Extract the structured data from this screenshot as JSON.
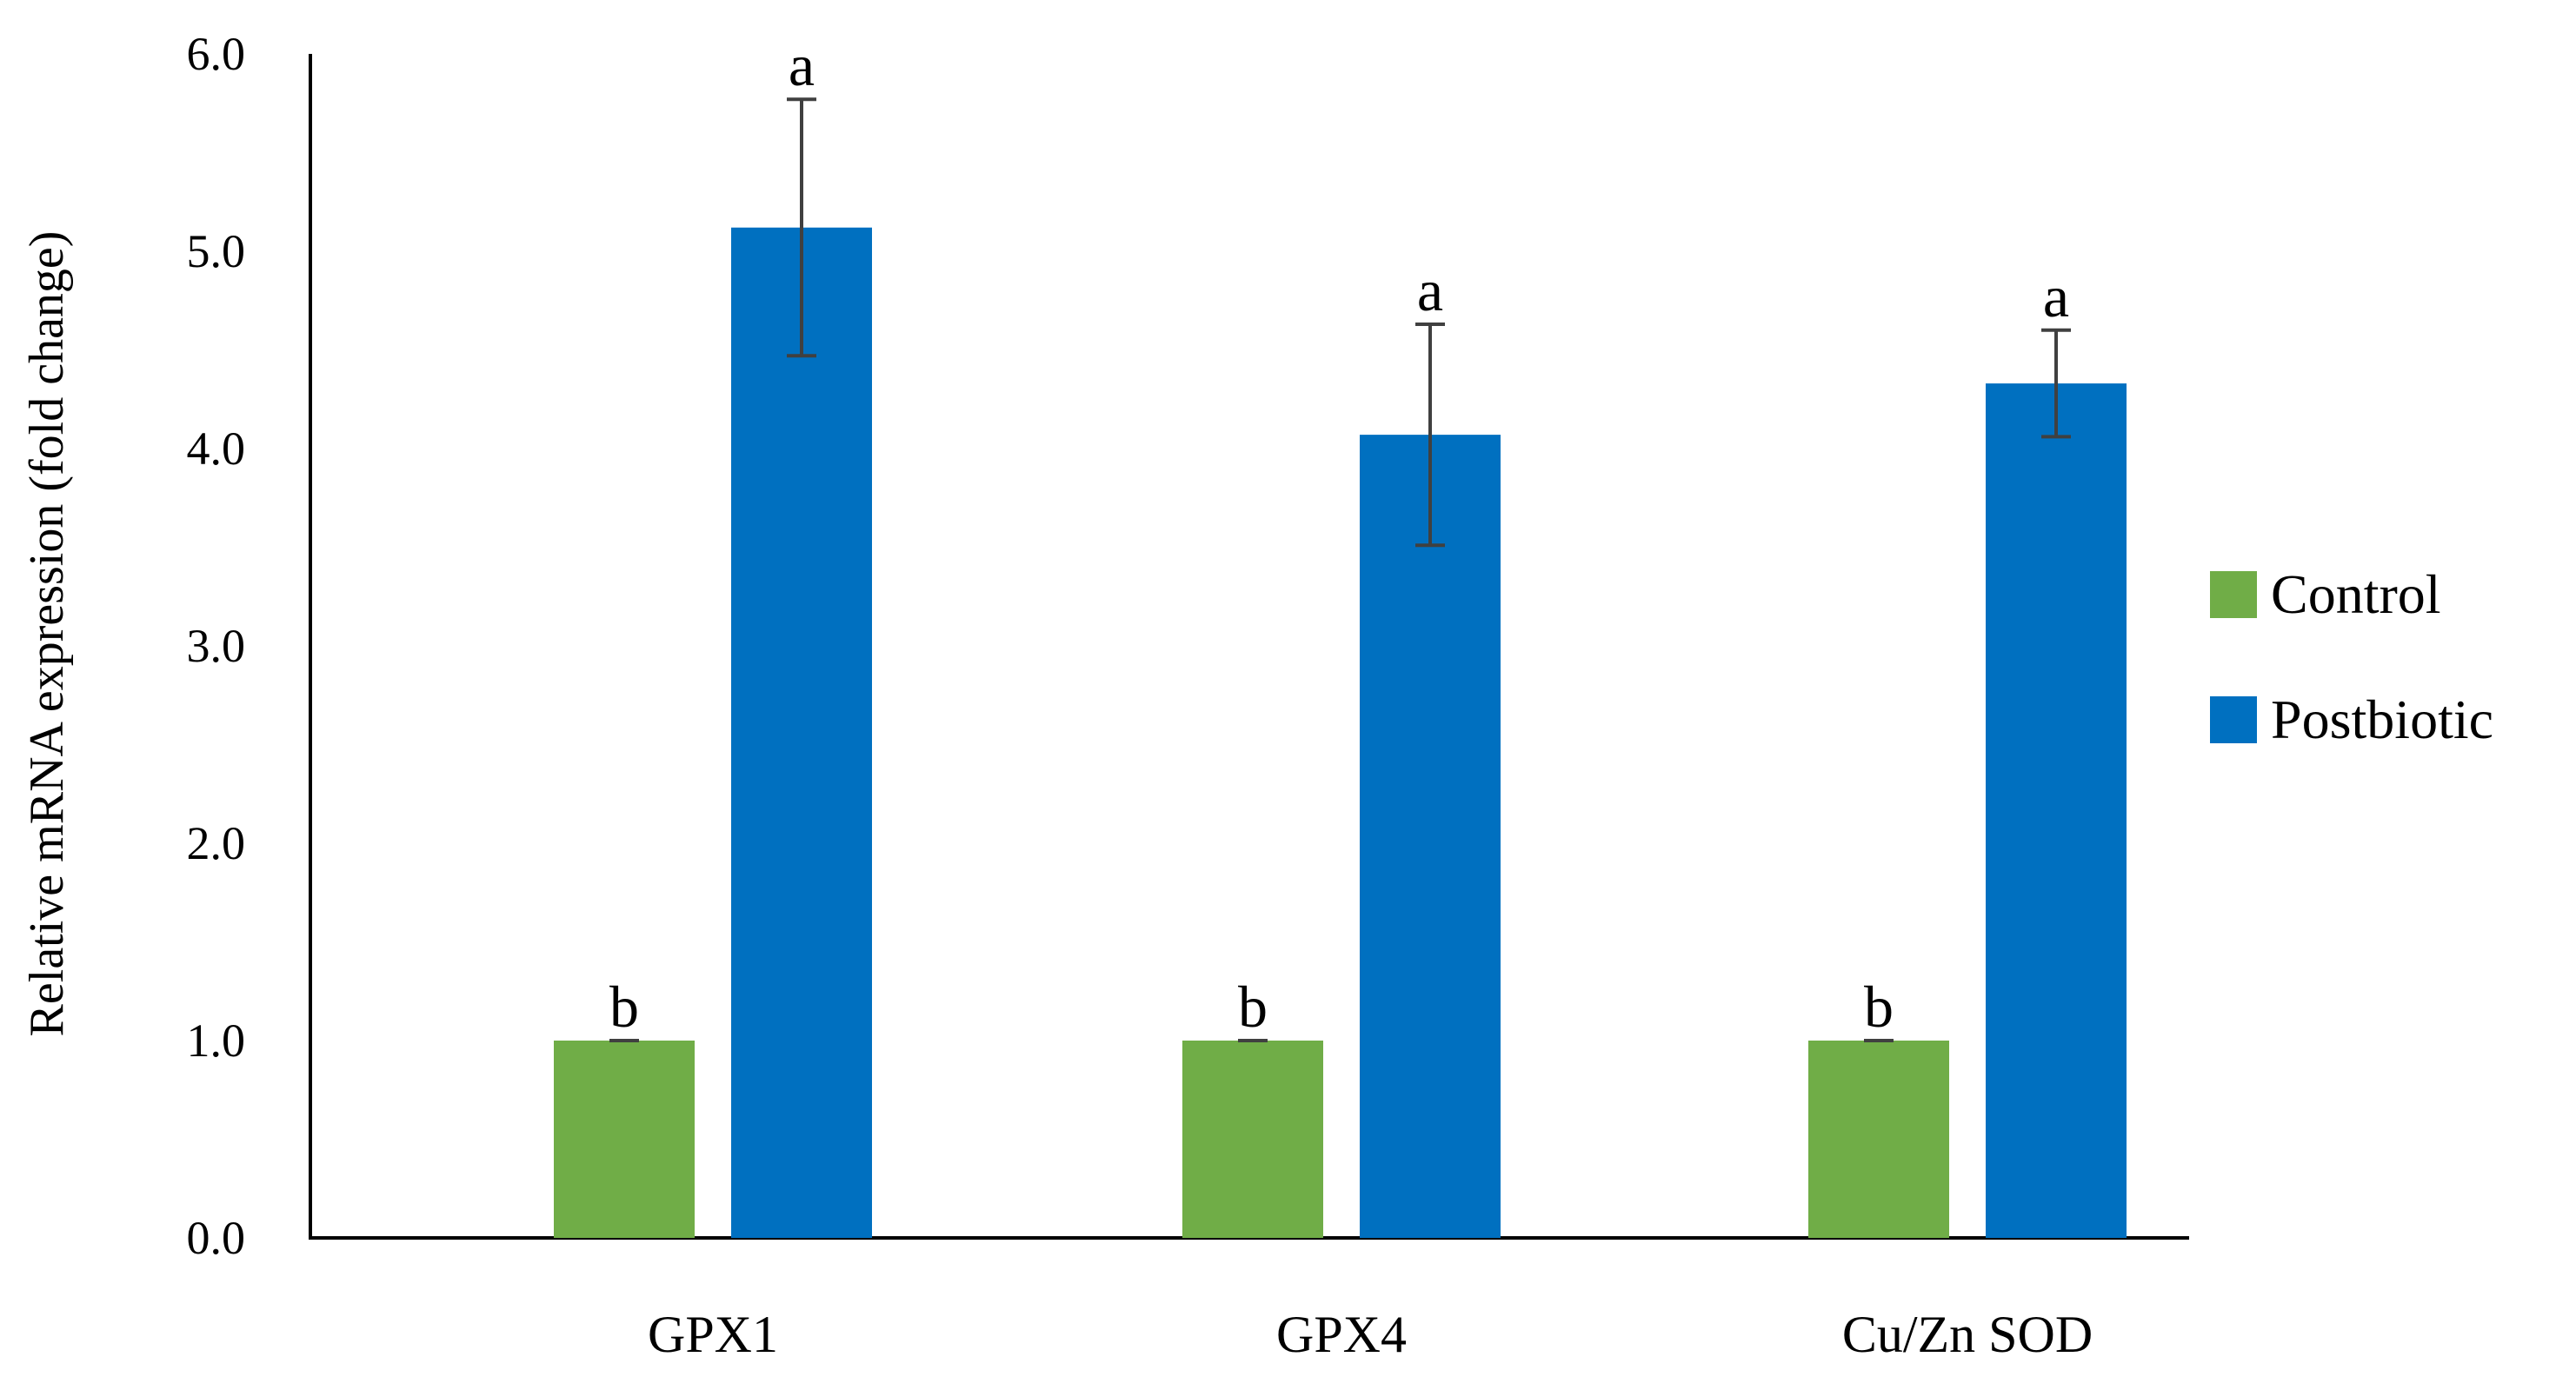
{
  "chart_data": {
    "type": "bar",
    "title": "",
    "xlabel": "",
    "ylabel": "Relative mRNA expression (fold change)",
    "ylim": [
      0,
      6
    ],
    "yticks": [
      "0.0",
      "1.0",
      "2.0",
      "3.0",
      "4.0",
      "5.0",
      "6.0"
    ],
    "categories": [
      "GPX1",
      "GPX4",
      "Cu/Zn SOD"
    ],
    "legend_position": "right",
    "grid": false,
    "series": [
      {
        "name": "Control",
        "color": "#70ad47",
        "values": [
          1.0,
          1.0,
          1.0
        ],
        "errors": [
          0.0,
          0.0,
          0.0
        ],
        "significance": [
          "b",
          "b",
          "b"
        ]
      },
      {
        "name": "Postbiotic",
        "color": "#0070c0",
        "values": [
          5.12,
          4.07,
          4.33
        ],
        "errors": [
          0.65,
          0.56,
          0.27
        ],
        "significance": [
          "a",
          "a",
          "a"
        ]
      }
    ]
  }
}
